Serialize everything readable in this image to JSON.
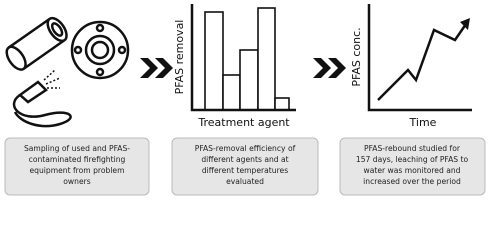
{
  "panels": [
    {
      "caption": [
        "Sampling of used and PFAS-",
        "contaminated firefighting",
        "equipment from problem",
        "owners"
      ]
    },
    {
      "y_label": "PFAS removal",
      "x_label": "Treatment agent",
      "caption": [
        "PFAS-removal efficiency of",
        "different agents and at",
        "different temperatures",
        "evaluated"
      ]
    },
    {
      "y_label": "PFAS conc.",
      "x_label": "Time",
      "caption": [
        "PFAS-rebound studied for",
        "157 days, leaching of PFAS to",
        "water was monitored and",
        "increased over the period"
      ]
    }
  ]
}
